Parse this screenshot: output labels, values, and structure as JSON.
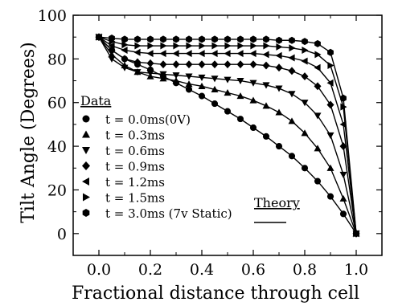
{
  "chart_data": {
    "type": "scatter",
    "title": "",
    "xlabel": "Fractional distance through cell",
    "ylabel": "Tilt Angle (Degrees)",
    "xlim": [
      -0.1,
      1.1
    ],
    "ylim": [
      -10,
      100
    ],
    "xticks": [
      "0.0",
      "0.2",
      "0.4",
      "0.6",
      "0.8",
      "1.0"
    ],
    "yticks": [
      "0",
      "20",
      "40",
      "60",
      "80",
      "100"
    ],
    "grid": false,
    "legend": {
      "data_title": "Data",
      "theory_title": "Theory",
      "position": "left"
    },
    "series": [
      {
        "name": "t = 0.0ms(0V)",
        "marker": "circle",
        "x": [
          0.0,
          0.05,
          0.1,
          0.15,
          0.2,
          0.25,
          0.3,
          0.35,
          0.4,
          0.45,
          0.5,
          0.55,
          0.6,
          0.65,
          0.7,
          0.75,
          0.8,
          0.85,
          0.9,
          0.95,
          1.0
        ],
        "y": [
          90,
          84,
          80,
          77.5,
          75,
          72,
          69,
          66,
          63,
          59.5,
          56,
          52.5,
          48.5,
          44.5,
          40,
          35.5,
          30,
          24,
          17,
          9,
          0
        ]
      },
      {
        "name": "t = 0.3ms",
        "marker": "triangle-up",
        "x": [
          0.0,
          0.05,
          0.1,
          0.15,
          0.2,
          0.25,
          0.3,
          0.35,
          0.4,
          0.45,
          0.5,
          0.55,
          0.6,
          0.65,
          0.7,
          0.75,
          0.8,
          0.85,
          0.9,
          0.95,
          1.0
        ],
        "y": [
          90,
          82,
          77,
          74,
          72,
          71,
          70,
          68.5,
          67.5,
          66,
          64.5,
          63,
          61,
          58.5,
          55.5,
          51.5,
          46,
          39,
          30,
          16,
          0
        ]
      },
      {
        "name": "t = 0.6ms",
        "marker": "triangle-down",
        "x": [
          0.0,
          0.05,
          0.1,
          0.15,
          0.2,
          0.25,
          0.3,
          0.35,
          0.4,
          0.45,
          0.5,
          0.55,
          0.6,
          0.65,
          0.7,
          0.75,
          0.8,
          0.85,
          0.9,
          0.95,
          1.0
        ],
        "y": [
          90,
          80,
          76,
          74,
          73.5,
          73,
          72.5,
          72,
          71.5,
          71,
          70.5,
          70,
          69,
          68,
          66.5,
          64,
          60,
          54,
          45,
          27,
          0
        ]
      },
      {
        "name": "t = 0.9ms",
        "marker": "diamond",
        "x": [
          0.0,
          0.05,
          0.1,
          0.15,
          0.2,
          0.25,
          0.3,
          0.35,
          0.4,
          0.45,
          0.5,
          0.55,
          0.6,
          0.65,
          0.7,
          0.75,
          0.8,
          0.85,
          0.9,
          0.95,
          1.0
        ],
        "y": [
          90,
          84,
          80,
          78.5,
          78,
          77.5,
          77.5,
          77.5,
          77.5,
          77.5,
          77.5,
          77.5,
          77.5,
          77,
          76,
          74.5,
          72,
          67.5,
          59,
          40,
          0
        ]
      },
      {
        "name": "t = 1.2ms",
        "marker": "triangle-left",
        "x": [
          0.0,
          0.05,
          0.1,
          0.15,
          0.2,
          0.25,
          0.3,
          0.35,
          0.4,
          0.45,
          0.5,
          0.55,
          0.6,
          0.65,
          0.7,
          0.75,
          0.8,
          0.85,
          0.9,
          0.95,
          1.0
        ],
        "y": [
          90,
          86,
          84,
          83,
          82.5,
          82.5,
          82.5,
          82.5,
          82.5,
          82.5,
          82.5,
          82.5,
          82.5,
          82,
          81.5,
          80.5,
          79,
          76,
          69,
          50,
          0
        ]
      },
      {
        "name": "t = 1.5ms",
        "marker": "triangle-right",
        "x": [
          0.0,
          0.05,
          0.1,
          0.15,
          0.2,
          0.25,
          0.3,
          0.35,
          0.4,
          0.45,
          0.5,
          0.55,
          0.6,
          0.65,
          0.7,
          0.75,
          0.8,
          0.85,
          0.9,
          0.95,
          1.0
        ],
        "y": [
          90,
          88,
          86.5,
          86,
          86,
          86,
          86,
          86,
          86,
          86,
          86,
          86,
          86,
          86,
          85.5,
          85,
          84,
          82,
          77,
          58,
          0
        ]
      },
      {
        "name": "t = 3.0ms (7v Static)",
        "marker": "hexagon",
        "x": [
          0.0,
          0.05,
          0.1,
          0.15,
          0.2,
          0.25,
          0.3,
          0.35,
          0.4,
          0.45,
          0.5,
          0.55,
          0.6,
          0.65,
          0.7,
          0.75,
          0.8,
          0.85,
          0.9,
          0.95,
          1.0
        ],
        "y": [
          90,
          89.5,
          89,
          89,
          89,
          89,
          89,
          89,
          89,
          89,
          89,
          89,
          89,
          89,
          88.5,
          88.5,
          88,
          87,
          83,
          62,
          0
        ]
      }
    ]
  }
}
